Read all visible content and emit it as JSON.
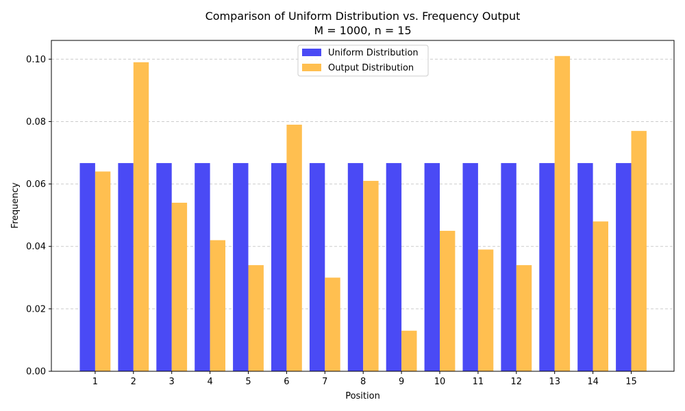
{
  "chart_data": {
    "type": "bar",
    "title_line1": "Comparison of Uniform Distribution vs. Frequency Output",
    "title_line2": "M = 1000, n = 15",
    "xlabel": "Position",
    "ylabel": "Frequency",
    "categories": [
      "1",
      "2",
      "3",
      "4",
      "5",
      "6",
      "7",
      "8",
      "9",
      "10",
      "11",
      "12",
      "13",
      "14",
      "15"
    ],
    "ylim": [
      0,
      0.106
    ],
    "yticks": [
      0.0,
      0.02,
      0.04,
      0.06,
      0.08,
      0.1
    ],
    "ytick_labels": [
      "0.00",
      "0.02",
      "0.04",
      "0.06",
      "0.08",
      "0.10"
    ],
    "grid": "y-dashed",
    "legend_position": "top-center",
    "series": [
      {
        "name": "Uniform Distribution",
        "color": "#4a4af5",
        "values": [
          0.0667,
          0.0667,
          0.0667,
          0.0667,
          0.0667,
          0.0667,
          0.0667,
          0.0667,
          0.0667,
          0.0667,
          0.0667,
          0.0667,
          0.0667,
          0.0667,
          0.0667
        ]
      },
      {
        "name": "Output Distribution",
        "color": "#ffbf50",
        "values": [
          0.064,
          0.099,
          0.054,
          0.042,
          0.034,
          0.079,
          0.03,
          0.061,
          0.013,
          0.045,
          0.039,
          0.034,
          0.101,
          0.048,
          0.077
        ]
      }
    ]
  }
}
